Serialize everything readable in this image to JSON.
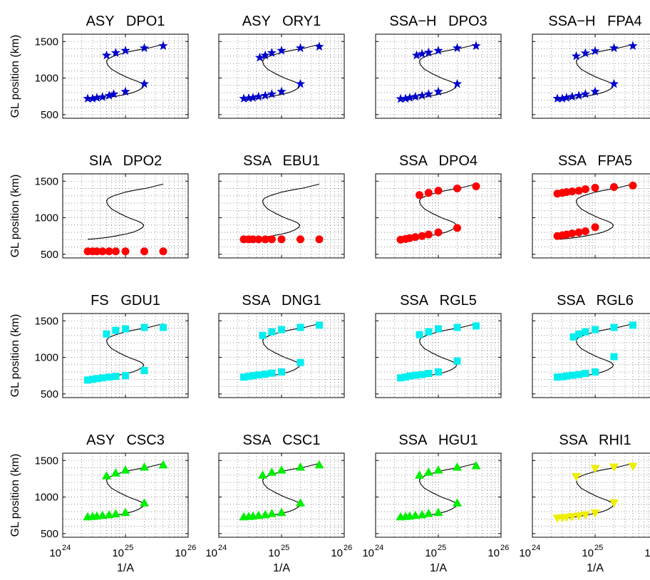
{
  "chart_data": {
    "type": "scatter",
    "grid": true,
    "x_scale": "log",
    "xlim": [
      1e+24,
      1e+26
    ],
    "ylim": [
      450,
      1600
    ],
    "x_ticks": [
      {
        "base": "10",
        "exp": "24"
      },
      {
        "base": "10",
        "exp": "25"
      },
      {
        "base": "10",
        "exp": "26"
      }
    ],
    "y_ticks": [
      500,
      1000,
      1500
    ],
    "xlabel": "1/A",
    "ylabel": "GL position (km)",
    "reference_curve": {
      "x": [
        4e+25,
        2.2e+25,
        1.6e+25,
        1.3e+25,
        1e+25,
        8e+24,
        6.5e+24,
        5.3e+24,
        5e+24,
        5.2e+24,
        6e+24,
        8e+24,
        1e+25,
        1.2e+25,
        1.5e+25,
        1.8e+25,
        1.95e+25,
        1.9e+25,
        1.6e+25,
        1.3e+25,
        1e+25,
        7e+24,
        5e+24,
        4e+24,
        3e+24,
        2.5e+24
      ],
      "y": [
        1460,
        1405,
        1385,
        1370,
        1350,
        1325,
        1300,
        1265,
        1230,
        1180,
        1120,
        1060,
        1020,
        990,
        960,
        930,
        900,
        870,
        830,
        800,
        775,
        750,
        730,
        720,
        710,
        705
      ]
    },
    "panels": [
      {
        "title": "ASY   DPO1",
        "color": "#0000cc",
        "marker": "star",
        "x": [
          2.5e+24,
          3e+24,
          3.5e+24,
          4.3e+24,
          5.5e+24,
          6.5e+24,
          1e+25,
          2e+25,
          4e+25,
          5e+24,
          7e+24,
          1e+25,
          2e+25
        ],
        "y": [
          720,
          720,
          730,
          740,
          760,
          780,
          815,
          920,
          1440,
          1310,
          1345,
          1375,
          1410
        ]
      },
      {
        "title": "ASY   ORY1",
        "color": "#0000cc",
        "marker": "star",
        "x": [
          2.5e+24,
          3e+24,
          3.5e+24,
          4.3e+24,
          5.5e+24,
          7e+24,
          1e+25,
          2e+25,
          4e+25,
          4.5e+24,
          5.5e+24,
          7e+24,
          1e+25,
          2e+25
        ],
        "y": [
          720,
          725,
          730,
          745,
          760,
          780,
          815,
          920,
          1430,
          1280,
          1310,
          1345,
          1375,
          1410
        ]
      },
      {
        "title": "SSA−H   DPO3",
        "color": "#0000cc",
        "marker": "star",
        "x": [
          2.5e+24,
          3e+24,
          3.5e+24,
          4.3e+24,
          5.5e+24,
          7e+24,
          1e+25,
          2e+25,
          4e+25,
          4.5e+24,
          5.5e+24,
          7e+24,
          1e+25,
          2e+25
        ],
        "y": [
          715,
          720,
          730,
          745,
          760,
          780,
          815,
          920,
          1440,
          1310,
          1330,
          1350,
          1375,
          1410
        ]
      },
      {
        "title": "SSA−H   FPA4",
        "color": "#0000cc",
        "marker": "star",
        "x": [
          2.5e+24,
          3e+24,
          3.5e+24,
          4.3e+24,
          5.5e+24,
          7e+24,
          1e+25,
          2e+25,
          4e+25,
          5e+24,
          7e+24,
          1e+25,
          2e+25
        ],
        "y": [
          720,
          720,
          730,
          745,
          760,
          780,
          815,
          920,
          1440,
          1300,
          1340,
          1370,
          1410
        ]
      },
      {
        "title": "SIA   DPO2",
        "color": "#ff0000",
        "marker": "circle",
        "x": [
          2.5e+24,
          3e+24,
          3.5e+24,
          4.3e+24,
          5.5e+24,
          7e+24,
          1e+25,
          2e+25,
          4e+25
        ],
        "y": [
          540,
          540,
          540,
          540,
          540,
          540,
          540,
          540,
          540
        ]
      },
      {
        "title": "SSA   EBU1",
        "color": "#ff0000",
        "marker": "circle",
        "x": [
          2.5e+24,
          3e+24,
          3.5e+24,
          4.3e+24,
          5.5e+24,
          7e+24,
          1e+25,
          2e+25,
          4e+25
        ],
        "y": [
          705,
          705,
          705,
          705,
          705,
          705,
          705,
          705,
          705
        ]
      },
      {
        "title": "SSA   DPO4",
        "color": "#ff0000",
        "marker": "circle",
        "x": [
          2.5e+24,
          3e+24,
          3.5e+24,
          4.3e+24,
          5.5e+24,
          7e+24,
          1e+25,
          2e+25,
          4e+25,
          5e+24,
          7e+24,
          1e+25,
          2e+25
        ],
        "y": [
          700,
          710,
          720,
          735,
          750,
          770,
          800,
          860,
          1430,
          1310,
          1340,
          1370,
          1400
        ]
      },
      {
        "title": "SSA   FPA5",
        "color": "#ff0000",
        "marker": "circle",
        "x": [
          2.5e+24,
          3e+24,
          3.5e+24,
          4.3e+24,
          5.5e+24,
          7e+24,
          1e+25,
          2e+25,
          4e+25,
          2.5e+24,
          3e+24,
          3.5e+24,
          4.3e+24,
          5.5e+24,
          7e+24,
          1e+25
        ],
        "y": [
          750,
          760,
          770,
          785,
          800,
          815,
          870,
          1420,
          1440,
          1330,
          1340,
          1350,
          1360,
          1370,
          1390,
          1410
        ]
      },
      {
        "title": "FS   GDU1",
        "color": "#00eeee",
        "marker": "square",
        "x": [
          2.5e+24,
          3e+24,
          3.5e+24,
          4.3e+24,
          5.5e+24,
          7e+24,
          1e+25,
          2e+25,
          4e+25,
          5e+24,
          7e+24,
          1e+25,
          2e+25
        ],
        "y": [
          690,
          700,
          710,
          720,
          730,
          740,
          750,
          820,
          1410,
          1320,
          1370,
          1390,
          1410
        ]
      },
      {
        "title": "SSA   DNG1",
        "color": "#00eeee",
        "marker": "square",
        "x": [
          2.5e+24,
          3e+24,
          3.5e+24,
          4.3e+24,
          5.5e+24,
          7e+24,
          1e+25,
          2e+25,
          4e+25,
          5e+24,
          7e+24,
          1e+25,
          2e+25
        ],
        "y": [
          730,
          740,
          750,
          760,
          770,
          785,
          800,
          930,
          1440,
          1300,
          1350,
          1380,
          1410
        ]
      },
      {
        "title": "SSA   RGL5",
        "color": "#00eeee",
        "marker": "square",
        "x": [
          2.5e+24,
          3e+24,
          3.5e+24,
          4.3e+24,
          5.5e+24,
          7e+24,
          1e+25,
          2e+25,
          4e+25,
          5e+24,
          7e+24,
          1e+25,
          2e+25
        ],
        "y": [
          720,
          730,
          745,
          755,
          765,
          780,
          800,
          950,
          1430,
          1310,
          1350,
          1390,
          1410
        ]
      },
      {
        "title": "SSA   RGL6",
        "color": "#00eeee",
        "marker": "square",
        "x": [
          2.5e+24,
          3e+24,
          3.5e+24,
          4.3e+24,
          5.5e+24,
          7e+24,
          1e+25,
          2e+25,
          4e+25,
          4.5e+24,
          5.5e+24,
          7e+24,
          1e+25,
          2e+25
        ],
        "y": [
          730,
          735,
          745,
          755,
          765,
          780,
          800,
          1010,
          1440,
          1280,
          1320,
          1350,
          1380,
          1410
        ]
      },
      {
        "title": "ASY   CSC3",
        "color": "#00ee00",
        "marker": "triangle",
        "x": [
          2.5e+24,
          3e+24,
          3.5e+24,
          4.3e+24,
          5.5e+24,
          7e+24,
          1e+25,
          2e+25,
          4e+25,
          5e+24,
          7e+24,
          1e+25,
          2e+25
        ],
        "y": [
          730,
          735,
          740,
          750,
          760,
          770,
          790,
          920,
          1440,
          1290,
          1330,
          1370,
          1410
        ]
      },
      {
        "title": "SSA   CSC1",
        "color": "#00ee00",
        "marker": "triangle",
        "x": [
          2.5e+24,
          3e+24,
          3.5e+24,
          4.3e+24,
          5.5e+24,
          7e+24,
          1e+25,
          2e+25,
          4e+25,
          5e+24,
          7e+24,
          1e+25,
          2e+25
        ],
        "y": [
          730,
          735,
          740,
          750,
          760,
          775,
          790,
          920,
          1440,
          1300,
          1340,
          1370,
          1410
        ]
      },
      {
        "title": "SSA   HGU1",
        "color": "#00ee00",
        "marker": "triangle",
        "x": [
          2.5e+24,
          3e+24,
          3.5e+24,
          4.3e+24,
          5.5e+24,
          7e+24,
          1e+25,
          2e+25,
          4e+25,
          5e+24,
          7e+24,
          1e+25,
          2e+25
        ],
        "y": [
          730,
          735,
          740,
          750,
          760,
          775,
          790,
          920,
          1430,
          1300,
          1340,
          1370,
          1410
        ]
      },
      {
        "title": "SSA   RHI1",
        "color": "#eeee00",
        "marker": "triangle-down",
        "x": [
          2.5e+24,
          3e+24,
          3.5e+24,
          4.3e+24,
          5.5e+24,
          7e+24,
          1e+25,
          2e+25,
          4e+25,
          5e+24,
          1e+25,
          2e+25
        ],
        "y": [
          710,
          715,
          720,
          730,
          740,
          755,
          780,
          920,
          1420,
          1280,
          1390,
          1410
        ]
      }
    ]
  }
}
